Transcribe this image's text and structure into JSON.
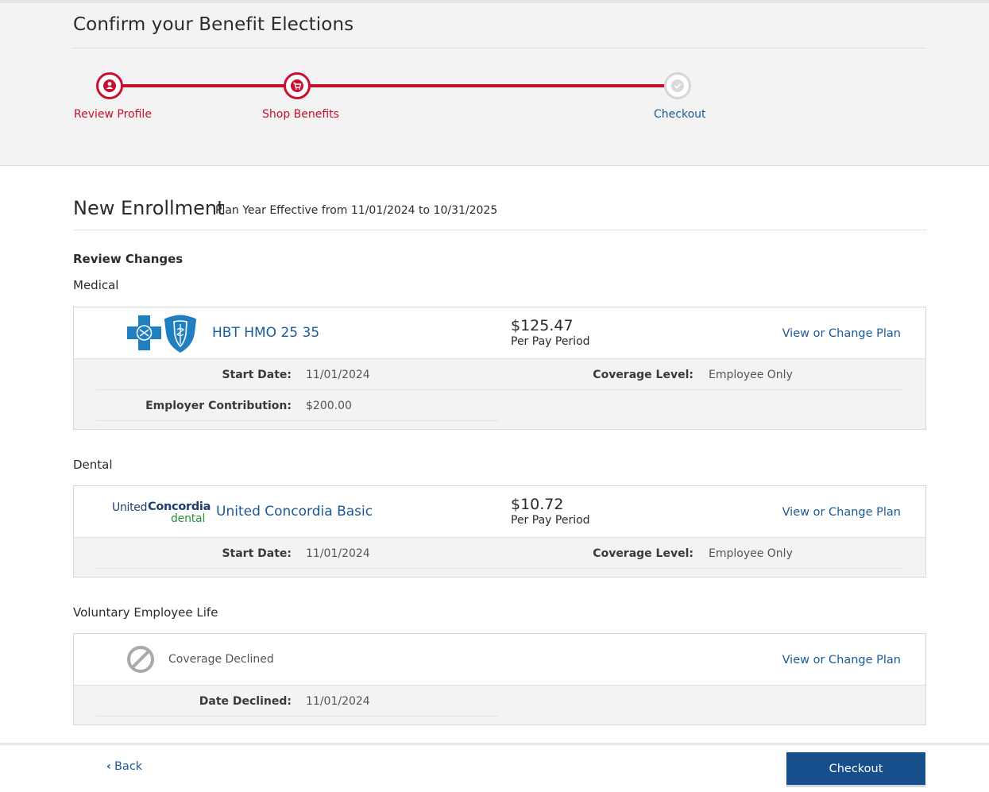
{
  "header": {
    "title": "Confirm your Benefit Elections",
    "steps": [
      {
        "label": "Review Profile",
        "icon": "user-icon",
        "state": "complete"
      },
      {
        "label": "Shop Benefits",
        "icon": "cart-icon",
        "state": "complete"
      },
      {
        "label": "Checkout",
        "icon": "check-icon",
        "state": "current"
      }
    ]
  },
  "enrollment": {
    "title": "New Enrollment",
    "subtitle": "Plan Year Effective from 11/01/2024 to 10/31/2025",
    "review_heading": "Review Changes"
  },
  "medical": {
    "section": "Medical",
    "plan_name": "HBT HMO 25 35",
    "price": "$125.47",
    "period": "Per Pay Period",
    "change_link": "View or Change Plan",
    "start_date_label": "Start Date:",
    "start_date": "11/01/2024",
    "coverage_label": "Coverage Level:",
    "coverage": "Employee Only",
    "employer_label": "Employer Contribution:",
    "employer_value": "$200.00"
  },
  "dental": {
    "section": "Dental",
    "logo_text": {
      "united": "United",
      "concordia": "Concordia",
      "dental": "dental"
    },
    "plan_name": "United Concordia Basic",
    "price": "$10.72",
    "period": "Per Pay Period",
    "change_link": "View or Change Plan",
    "start_date_label": "Start Date:",
    "start_date": "11/01/2024",
    "coverage_label": "Coverage Level:",
    "coverage": "Employee Only"
  },
  "life": {
    "section": "Voluntary Employee Life",
    "status": "Coverage Declined",
    "change_link": "View or Change Plan",
    "declined_label": "Date Declined:",
    "declined_date": "11/01/2024"
  },
  "footer": {
    "back_label": "Back",
    "checkout_label": "Checkout"
  },
  "colors": {
    "accent_red": "#c8102e",
    "link_blue": "#1a5a96",
    "button_blue": "#164f8b"
  }
}
